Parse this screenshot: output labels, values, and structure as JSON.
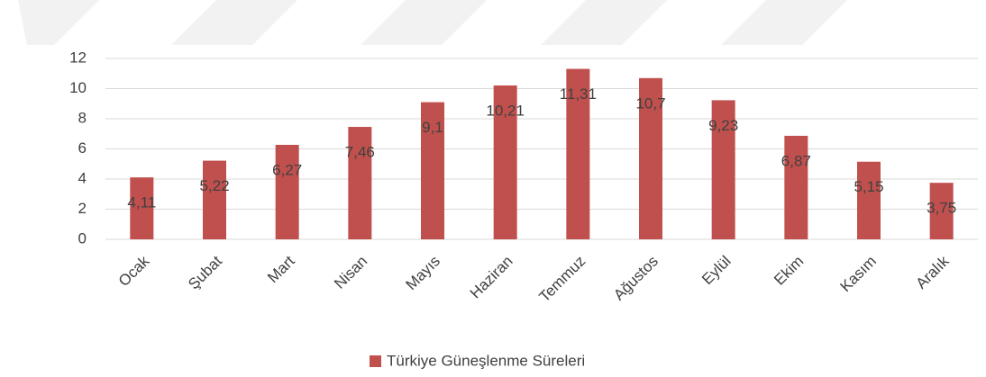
{
  "chart_data": {
    "type": "bar",
    "categories": [
      "Ocak",
      "Şubat",
      "Mart",
      "Nisan",
      "Mayıs",
      "Haziran",
      "Temmuz",
      "Ağustos",
      "Eylül",
      "Ekim",
      "Kasım",
      "Aralık"
    ],
    "series": [
      {
        "name": "Türkiye Güneşlenme Süreleri",
        "color": "#c0504d",
        "values": [
          4.11,
          5.22,
          6.27,
          7.46,
          9.1,
          10.21,
          11.31,
          10.7,
          9.23,
          6.87,
          5.15,
          3.75
        ],
        "value_labels": [
          "4,11",
          "5,22",
          "6,27",
          "7,46",
          "9,1",
          "10,21",
          "11,31",
          "10,7",
          "9,23",
          "6,87",
          "5,15",
          "3,75"
        ]
      }
    ],
    "ylim": [
      0,
      12
    ],
    "yticks": [
      0,
      2,
      4,
      6,
      8,
      10,
      12
    ],
    "grid": true,
    "legend": "bottom"
  }
}
